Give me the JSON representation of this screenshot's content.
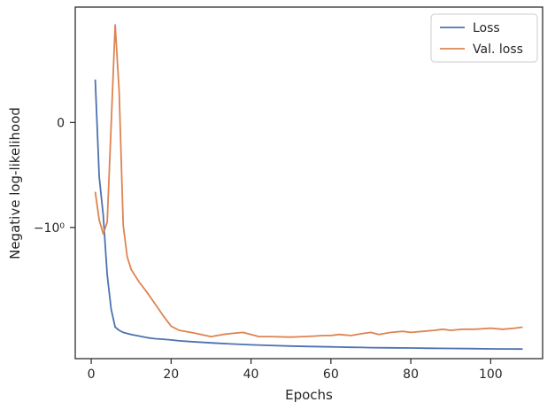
{
  "chart_data": {
    "type": "line",
    "title": "",
    "xlabel": "Epochs",
    "ylabel": "Negative log-likelihood",
    "xlim": [
      -4,
      113
    ],
    "x_ticks": [
      0,
      20,
      40,
      60,
      80,
      100
    ],
    "y_ticks": [
      {
        "label": "0",
        "value": 0
      },
      {
        "label": "−10⁰",
        "value": -1
      }
    ],
    "ylim": [
      -2.25,
      1.1
    ],
    "legend_position": "top-right",
    "grid": false,
    "series": [
      {
        "name": "Loss",
        "color": "#4c72b0",
        "x": [
          1,
          2,
          3,
          4,
          5,
          6,
          7,
          8,
          9,
          10,
          12,
          14,
          16,
          18,
          20,
          22,
          25,
          30,
          35,
          40,
          45,
          50,
          55,
          60,
          65,
          68,
          70,
          75,
          80,
          85,
          90,
          95,
          100,
          105,
          108
        ],
        "y": [
          0.41,
          -0.52,
          -0.88,
          -1.45,
          -1.78,
          -1.95,
          -1.98,
          -2.0,
          -2.01,
          -2.02,
          -2.035,
          -2.05,
          -2.06,
          -2.065,
          -2.072,
          -2.08,
          -2.088,
          -2.1,
          -2.11,
          -2.118,
          -2.124,
          -2.13,
          -2.134,
          -2.138,
          -2.142,
          -2.144,
          -2.145,
          -2.147,
          -2.149,
          -2.151,
          -2.153,
          -2.155,
          -2.157,
          -2.158,
          -2.159
        ]
      },
      {
        "name": "Val. loss",
        "color": "#dd8452",
        "x": [
          1,
          2,
          3,
          4,
          5,
          6,
          7,
          8,
          9,
          10,
          12,
          14,
          16,
          18,
          20,
          22,
          25,
          30,
          33,
          35,
          38,
          40,
          42,
          45,
          50,
          53,
          56,
          58,
          60,
          62,
          65,
          68,
          70,
          72,
          75,
          78,
          80,
          83,
          86,
          88,
          90,
          93,
          96,
          100,
          103,
          106,
          108
        ],
        "y": [
          -0.66,
          -0.93,
          -1.06,
          -0.95,
          -0.02,
          0.93,
          0.3,
          -0.98,
          -1.28,
          -1.4,
          -1.52,
          -1.62,
          -1.73,
          -1.84,
          -1.94,
          -1.98,
          -2.0,
          -2.04,
          -2.02,
          -2.01,
          -2.0,
          -2.02,
          -2.04,
          -2.04,
          -2.045,
          -2.04,
          -2.035,
          -2.03,
          -2.03,
          -2.02,
          -2.03,
          -2.01,
          -2.0,
          -2.02,
          -2.0,
          -1.99,
          -2.0,
          -1.99,
          -1.98,
          -1.97,
          -1.98,
          -1.97,
          -1.97,
          -1.96,
          -1.97,
          -1.96,
          -1.95
        ]
      }
    ]
  }
}
